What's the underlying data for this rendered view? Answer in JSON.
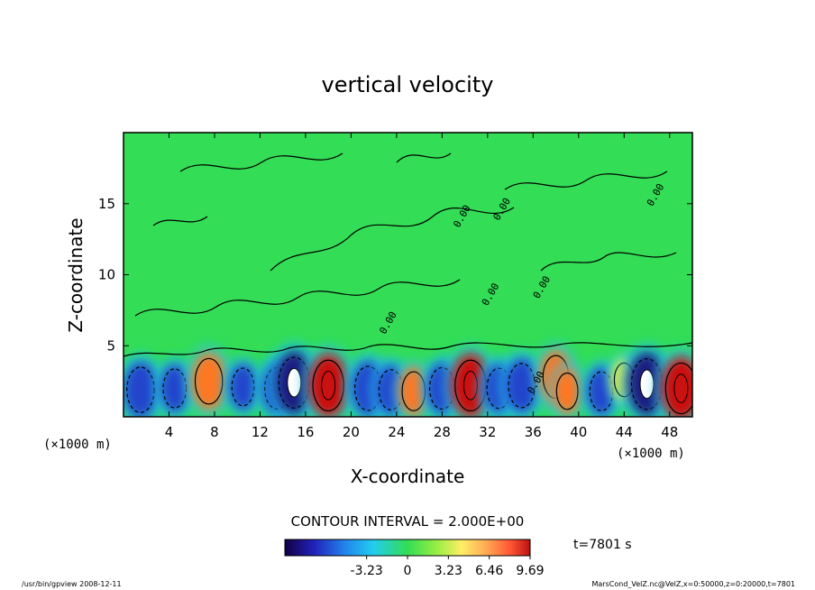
{
  "chart_data": {
    "type": "heatmap",
    "title": "vertical velocity",
    "xlabel": "X-coordinate",
    "ylabel": "Z-coordinate",
    "x_unit_left": "(×1000 m)",
    "x_unit_right": "(×1000 m)",
    "xlim": [
      0,
      50
    ],
    "ylim": [
      0,
      20
    ],
    "x_ticks": [
      "4",
      "8",
      "12",
      "16",
      "20",
      "24",
      "28",
      "32",
      "36",
      "40",
      "44",
      "48"
    ],
    "y_ticks": [
      "5",
      "10",
      "15"
    ],
    "contour_interval_label": "CONTOUR INTERVAL = 2.000E+00",
    "contour_labels": [
      {
        "x": 30.0,
        "z": 14.0,
        "text": "0.00"
      },
      {
        "x": 33.5,
        "z": 14.5,
        "text": "0.00"
      },
      {
        "x": 47.0,
        "z": 15.5,
        "text": "0.00"
      },
      {
        "x": 37.0,
        "z": 9.0,
        "text": "0.00"
      },
      {
        "x": 23.5,
        "z": 6.5,
        "text": "0.00"
      },
      {
        "x": 32.5,
        "z": 8.5,
        "text": "0.00"
      },
      {
        "x": 36.5,
        "z": 2.3,
        "text": "0.00"
      }
    ],
    "cells": [
      {
        "x": 1.5,
        "z": 1.9,
        "w": -7.5
      },
      {
        "x": 4.5,
        "z": 2.0,
        "w": -5.0
      },
      {
        "x": 7.5,
        "z": 2.5,
        "w": 7.5
      },
      {
        "x": 10.5,
        "z": 2.1,
        "w": -4.5
      },
      {
        "x": 13.5,
        "z": 2.0,
        "w": -6.0
      },
      {
        "x": 15.0,
        "z": 2.4,
        "w": -9.5
      },
      {
        "x": 18.0,
        "z": 2.2,
        "w": 9.5
      },
      {
        "x": 21.5,
        "z": 2.0,
        "w": -7.0
      },
      {
        "x": 23.5,
        "z": 1.9,
        "w": -5.5
      },
      {
        "x": 25.5,
        "z": 1.8,
        "w": 5.0
      },
      {
        "x": 28.0,
        "z": 2.0,
        "w": -6.0
      },
      {
        "x": 30.5,
        "z": 2.2,
        "w": 9.5
      },
      {
        "x": 33.0,
        "z": 2.0,
        "w": -5.5
      },
      {
        "x": 35.0,
        "z": 2.2,
        "w": -7.0
      },
      {
        "x": 38.0,
        "z": 2.8,
        "w": 6.5
      },
      {
        "x": 39.0,
        "z": 1.8,
        "w": 4.0
      },
      {
        "x": 42.0,
        "z": 1.8,
        "w": -5.0
      },
      {
        "x": 44.0,
        "z": 2.6,
        "w": 3.0
      },
      {
        "x": 46.0,
        "z": 2.3,
        "w": -9.5
      },
      {
        "x": 49.0,
        "z": 2.0,
        "w": 9.5
      }
    ],
    "colorbar": {
      "min": -9.69,
      "max": 9.69,
      "tick_labels": [
        "-3.23",
        "0",
        "3.23",
        "6.46",
        "9.69"
      ],
      "tick_values": [
        -3.23,
        0,
        3.23,
        6.46,
        9.69
      ]
    },
    "time_label": "t=7801 s",
    "footer_left": "/usr/bin/gpview   2008-12-11",
    "footer_right": "MarsCond_VelZ.nc@VelZ,x=0:50000,z=0:20000,t=7801",
    "colors": {
      "background_green": "#33dd55",
      "cyan": "#22ccee",
      "blue": "#2244cc",
      "navy": "#1a1a80",
      "yellow": "#ffee33",
      "orange": "#ff7722",
      "red": "#cc1111"
    }
  }
}
